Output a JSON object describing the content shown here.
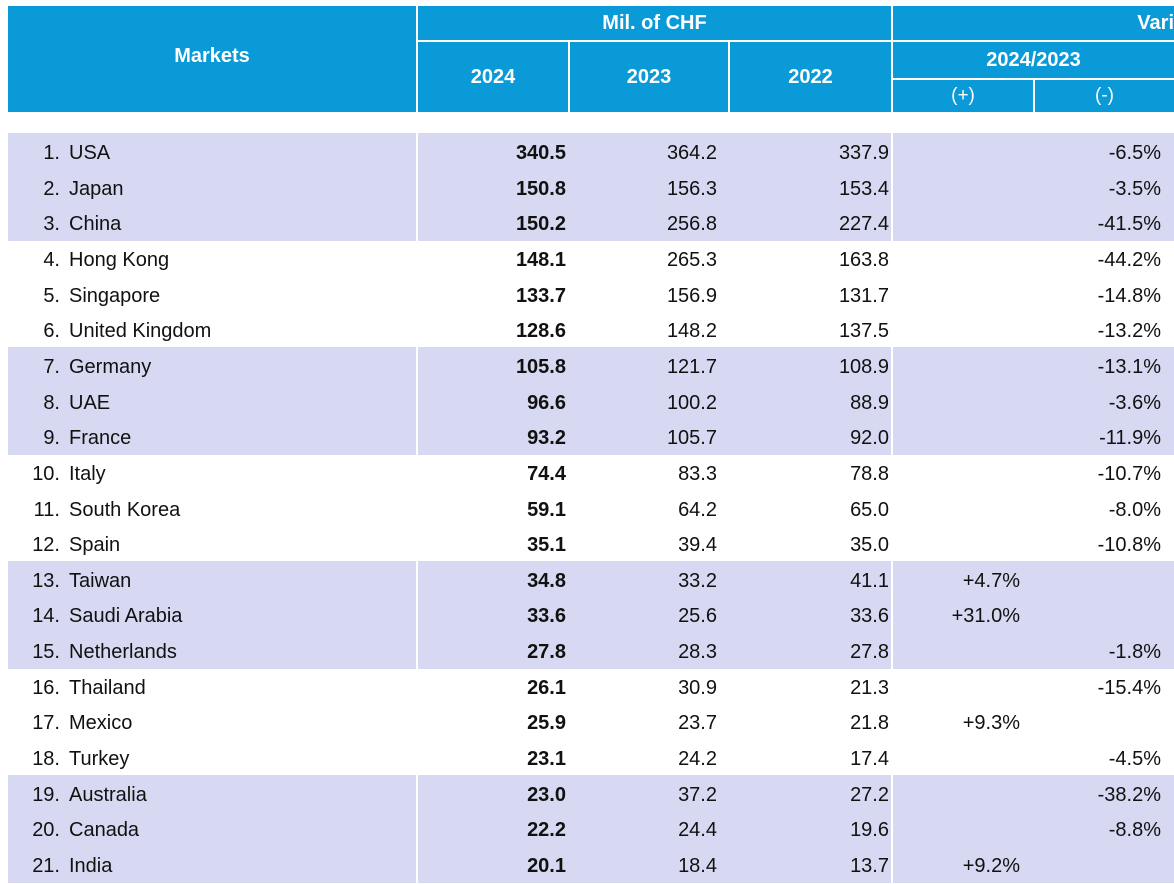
{
  "header": {
    "markets": "Markets",
    "currency": "Mil. of CHF",
    "variation": "Vari",
    "years": [
      "2024",
      "2023",
      "2022"
    ],
    "period": "2024/2023",
    "plus": "(+)",
    "minus": "(-)"
  },
  "table": {
    "rows": [
      {
        "rank": "1.",
        "market": "USA",
        "v2024": "340.5",
        "v2023": "364.2",
        "v2022": "337.9",
        "plus": null,
        "minus": "-6.5%"
      },
      {
        "rank": "2.",
        "market": "Japan",
        "v2024": "150.8",
        "v2023": "156.3",
        "v2022": "153.4",
        "plus": null,
        "minus": "-3.5%"
      },
      {
        "rank": "3.",
        "market": "China",
        "v2024": "150.2",
        "v2023": "256.8",
        "v2022": "227.4",
        "plus": null,
        "minus": "-41.5%"
      },
      {
        "rank": "4.",
        "market": "Hong Kong",
        "v2024": "148.1",
        "v2023": "265.3",
        "v2022": "163.8",
        "plus": null,
        "minus": "-44.2%"
      },
      {
        "rank": "5.",
        "market": "Singapore",
        "v2024": "133.7",
        "v2023": "156.9",
        "v2022": "131.7",
        "plus": null,
        "minus": "-14.8%"
      },
      {
        "rank": "6.",
        "market": "United Kingdom",
        "v2024": "128.6",
        "v2023": "148.2",
        "v2022": "137.5",
        "plus": null,
        "minus": "-13.2%"
      },
      {
        "rank": "7.",
        "market": "Germany",
        "v2024": "105.8",
        "v2023": "121.7",
        "v2022": "108.9",
        "plus": null,
        "minus": "-13.1%"
      },
      {
        "rank": "8.",
        "market": "UAE",
        "v2024": "96.6",
        "v2023": "100.2",
        "v2022": "88.9",
        "plus": null,
        "minus": "-3.6%"
      },
      {
        "rank": "9.",
        "market": "France",
        "v2024": "93.2",
        "v2023": "105.7",
        "v2022": "92.0",
        "plus": null,
        "minus": "-11.9%"
      },
      {
        "rank": "10.",
        "market": "Italy",
        "v2024": "74.4",
        "v2023": "83.3",
        "v2022": "78.8",
        "plus": null,
        "minus": "-10.7%"
      },
      {
        "rank": "11.",
        "market": "South Korea",
        "v2024": "59.1",
        "v2023": "64.2",
        "v2022": "65.0",
        "plus": null,
        "minus": "-8.0%"
      },
      {
        "rank": "12.",
        "market": "Spain",
        "v2024": "35.1",
        "v2023": "39.4",
        "v2022": "35.0",
        "plus": null,
        "minus": "-10.8%"
      },
      {
        "rank": "13.",
        "market": "Taiwan",
        "v2024": "34.8",
        "v2023": "33.2",
        "v2022": "41.1",
        "plus": "+4.7%",
        "minus": null
      },
      {
        "rank": "14.",
        "market": "Saudi Arabia",
        "v2024": "33.6",
        "v2023": "25.6",
        "v2022": "33.6",
        "plus": "+31.0%",
        "minus": null
      },
      {
        "rank": "15.",
        "market": "Netherlands",
        "v2024": "27.8",
        "v2023": "28.3",
        "v2022": "27.8",
        "plus": null,
        "minus": "-1.8%"
      },
      {
        "rank": "16.",
        "market": "Thailand",
        "v2024": "26.1",
        "v2023": "30.9",
        "v2022": "21.3",
        "plus": null,
        "minus": "-15.4%"
      },
      {
        "rank": "17.",
        "market": "Mexico",
        "v2024": "25.9",
        "v2023": "23.7",
        "v2022": "21.8",
        "plus": "+9.3%",
        "minus": null
      },
      {
        "rank": "18.",
        "market": "Turkey",
        "v2024": "23.1",
        "v2023": "24.2",
        "v2022": "17.4",
        "plus": null,
        "minus": "-4.5%"
      },
      {
        "rank": "19.",
        "market": "Australia",
        "v2024": "23.0",
        "v2023": "37.2",
        "v2022": "27.2",
        "plus": null,
        "minus": "-38.2%"
      },
      {
        "rank": "20.",
        "market": "Canada",
        "v2024": "22.2",
        "v2023": "24.4",
        "v2022": "19.6",
        "plus": null,
        "minus": "-8.8%"
      },
      {
        "rank": "21.",
        "market": "India",
        "v2024": "20.1",
        "v2023": "18.4",
        "v2022": "13.7",
        "plus": "+9.2%",
        "minus": null
      }
    ]
  }
}
